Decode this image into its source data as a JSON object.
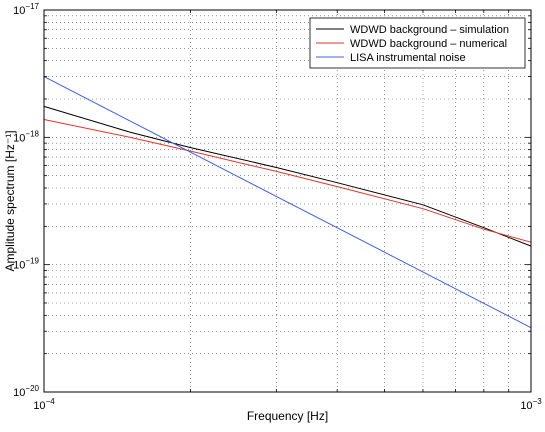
{
  "chart_data": {
    "type": "line",
    "xlabel": "Frequency [Hz]",
    "ylabel": "Amplitude spectrum [Hz⁻¹]",
    "xscale": "log",
    "yscale": "log",
    "xlim": [
      0.0001,
      0.001
    ],
    "ylim": [
      1e-20,
      1e-17
    ],
    "grid": true,
    "legend_position": "top-right",
    "x_ticks": [
      {
        "value": 0.0001,
        "base": "10",
        "exp": "−4"
      },
      {
        "value": 0.001,
        "base": "10",
        "exp": "−3"
      }
    ],
    "y_ticks": [
      {
        "value": 1e-20,
        "base": "10",
        "exp": "−20"
      },
      {
        "value": 1e-19,
        "base": "10",
        "exp": "−19"
      },
      {
        "value": 1e-18,
        "base": "10",
        "exp": "−18"
      },
      {
        "value": 1e-17,
        "base": "10",
        "exp": "−17"
      }
    ],
    "series": [
      {
        "name": "WDWD background – simulation",
        "color": "#000000",
        "x": [
          0.0001,
          0.00015,
          0.0002,
          0.0003,
          0.0004,
          0.0006,
          0.0008,
          0.001
        ],
        "y": [
          1.75e-18,
          1.1e-18,
          8.3e-19,
          5.8e-19,
          4.4e-19,
          2.95e-19,
          1.95e-19,
          1.4e-19
        ]
      },
      {
        "name": "WDWD background – numerical",
        "color": "#e8302a",
        "x": [
          0.0001,
          0.00015,
          0.0002,
          0.0003,
          0.0004,
          0.0006,
          0.0008,
          0.001
        ],
        "y": [
          1.38e-18,
          1e-18,
          7.8e-19,
          5.4e-19,
          4.1e-19,
          2.75e-19,
          1.9e-19,
          1.5e-19
        ]
      },
      {
        "name": "LISA instrumental noise",
        "color": "#3f5fe0",
        "x": [
          0.0001,
          0.001
        ],
        "y": [
          3e-18,
          3.2e-20
        ]
      }
    ]
  }
}
